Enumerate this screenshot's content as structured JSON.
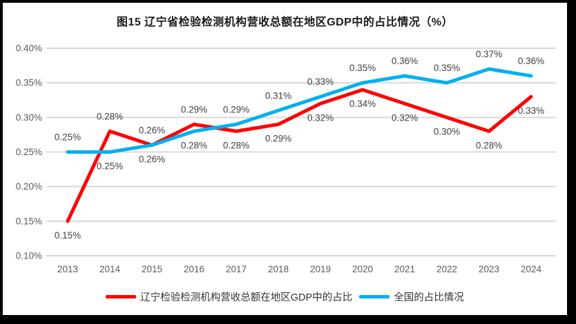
{
  "chart_data": {
    "type": "line",
    "title": "图15 辽宁省检验检测机构营收总额在地区GDP中的占比情况（%）",
    "categories": [
      "2013",
      "2014",
      "2015",
      "2016",
      "2017",
      "2018",
      "2019",
      "2020",
      "2021",
      "2022",
      "2023",
      "2024"
    ],
    "series": [
      {
        "name": "辽宁检验检测机构营收总额在地区GDP中的占比",
        "color": "#ff0000",
        "values": [
          0.15,
          0.28,
          0.26,
          0.29,
          0.28,
          0.29,
          0.32,
          0.34,
          0.32,
          0.3,
          0.28,
          0.33
        ],
        "labels": [
          "0.15%",
          "0.28%",
          "0.26%",
          "0.29%",
          "0.28%",
          "0.29%",
          "0.32%",
          "0.34%",
          "0.32%",
          "0.30%",
          "0.28%",
          "0.33%"
        ]
      },
      {
        "name": "全国的占比情况",
        "color": "#00b0f0",
        "values": [
          0.25,
          0.25,
          0.26,
          0.28,
          0.29,
          0.31,
          0.33,
          0.35,
          0.36,
          0.35,
          0.37,
          0.36
        ],
        "labels": [
          "0.25%",
          "0.25%",
          "0.26%",
          "0.28%",
          "0.29%",
          "0.31%",
          "0.33%",
          "0.35%",
          "0.36%",
          "0.35%",
          "0.37%",
          "0.36%"
        ]
      }
    ],
    "y_axis": {
      "min": 0.1,
      "max": 0.4,
      "tick_step": 0.05,
      "ticks": [
        "0.40%",
        "0.35%",
        "0.30%",
        "0.25%",
        "0.20%",
        "0.15%",
        "0.10%"
      ]
    },
    "x_axis": {
      "ticks": [
        "2013",
        "2014",
        "2015",
        "2016",
        "2017",
        "2018",
        "2019",
        "2020",
        "2021",
        "2022",
        "2023",
        "2024"
      ]
    },
    "grid": true,
    "data_labels": true,
    "legend_position": "bottom",
    "colors": {
      "grid": "#d9d9d9",
      "axis_text": "#595959",
      "data_label_text": "#404040",
      "title_text": "#1a1a1a",
      "background": "#ffffff",
      "frame": "#000000"
    }
  }
}
